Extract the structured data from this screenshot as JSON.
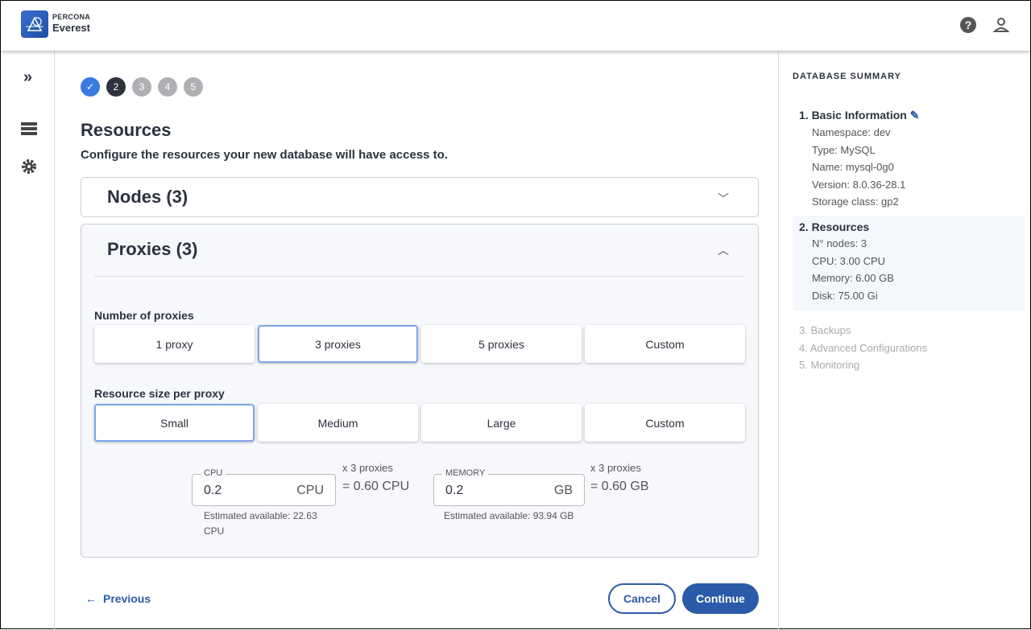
{
  "header": {
    "brand_top": "PERCONA",
    "brand_name": "Everest"
  },
  "steps": [
    "2",
    "3",
    "4",
    "5"
  ],
  "page": {
    "title": "Resources",
    "subtitle": "Configure the resources your new database will have access to."
  },
  "nodes": {
    "title": "Nodes (3)"
  },
  "proxies": {
    "title": "Proxies (3)",
    "number_label": "Number of proxies",
    "number_options": [
      "1 proxy",
      "3 proxies",
      "5 proxies",
      "Custom"
    ],
    "number_selected": "3 proxies",
    "size_label": "Resource size per proxy",
    "size_options": [
      "Small",
      "Medium",
      "Large",
      "Custom"
    ],
    "size_selected": "Small",
    "cpu": {
      "label": "CPU",
      "value": "0.2",
      "unit": "CPU",
      "multiplier": "x 3 proxies",
      "total": "= 0.60 CPU",
      "available": "Estimated available: 22.63 CPU"
    },
    "memory": {
      "label": "MEMORY",
      "value": "0.2",
      "unit": "GB",
      "multiplier": "x 3 proxies",
      "total": "= 0.60 GB",
      "available": "Estimated available: 93.94 GB"
    }
  },
  "footer": {
    "previous": "Previous",
    "cancel": "Cancel",
    "continue": "Continue"
  },
  "summary": {
    "title": "DATABASE SUMMARY",
    "basic": {
      "title": "1. Basic Information",
      "items": [
        "Namespace: dev",
        "Type: MySQL",
        "Name: mysql-0g0",
        "Version: 8.0.36-28.1",
        "Storage class: gp2"
      ]
    },
    "resources": {
      "title": "2. Resources",
      "items": [
        "N° nodes: 3",
        "CPU: 3.00 CPU",
        "Memory: 6.00 GB",
        "Disk: 75.00 Gi"
      ]
    },
    "pending": [
      "3. Backups",
      "4. Advanced Configurations",
      "5. Monitoring"
    ]
  },
  "colors": {
    "accent": "#2b5ba8",
    "step_done": "#3b7be0"
  }
}
